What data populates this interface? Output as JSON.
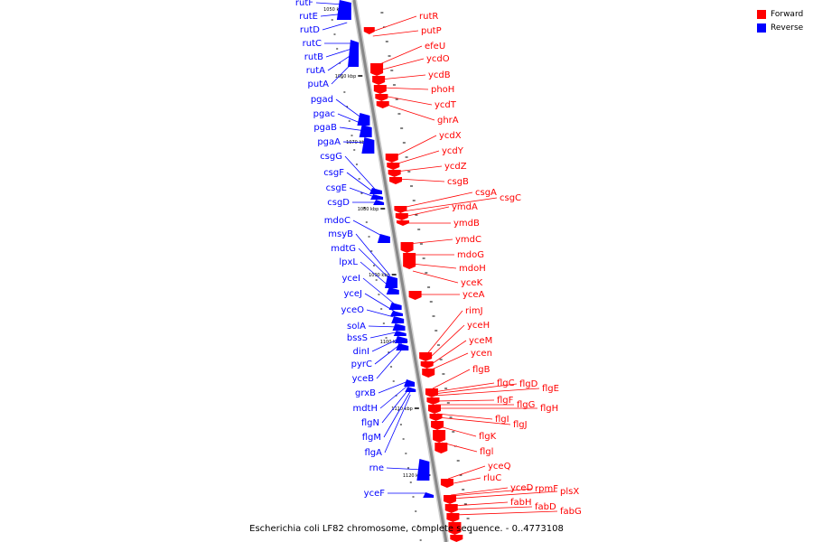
{
  "caption": "Escherichia coli LF82 chromosome, complete sequence. - 0..4773108",
  "legend": [
    {
      "label": "Forward",
      "color": "#ff0000"
    },
    {
      "label": "Reverse",
      "color": "#0000ff"
    }
  ],
  "colors": {
    "forward": "#ff0000",
    "reverse": "#0000ff",
    "backbone": "#888888"
  },
  "ticks": [
    "1050 kbp",
    "1060 kbp",
    "1070 kbp",
    "1080 kbp",
    "1090 kbp",
    "1100 kbp",
    "1110 kbp",
    "1120 kbp"
  ],
  "reverse_genes": [
    "rutF",
    "rutE",
    "rutD",
    "rutC",
    "rutB",
    "rutA",
    "putA",
    "pgad",
    "pgac",
    "pgaB",
    "pgaA",
    "csgG",
    "csgF",
    "csgE",
    "csgD",
    "mdoC",
    "msyB",
    "mdtG",
    "lpxL",
    "yceI",
    "yceJ",
    "yceO",
    "solA",
    "bssS",
    "dinI",
    "pyrC",
    "yceB",
    "grxB",
    "mdtH",
    "flgN",
    "flgM",
    "flgA",
    "rne",
    "yceF"
  ],
  "forward_genes": [
    "rutR",
    "putP",
    "efeU",
    "ycdO",
    "ycdB",
    "phoH",
    "ycdT",
    "ghrA",
    "ycdX",
    "ycdY",
    "ycdZ",
    "csgB",
    "csgA",
    "csgC",
    "ymdA",
    "ymdB",
    "ymdC",
    "mdoG",
    "mdoH",
    "yceK",
    "yceA",
    "rimJ",
    "yceH",
    "yceM",
    "ycen",
    "flgB",
    "flgC",
    "flgD",
    "flgE",
    "flgF",
    "flgG",
    "flgH",
    "flgI",
    "flgJ",
    "flgK",
    "flgl",
    "yceQ",
    "rluC",
    "yceD",
    "rpmF",
    "plsX",
    "fabH",
    "fabD",
    "fabG"
  ]
}
